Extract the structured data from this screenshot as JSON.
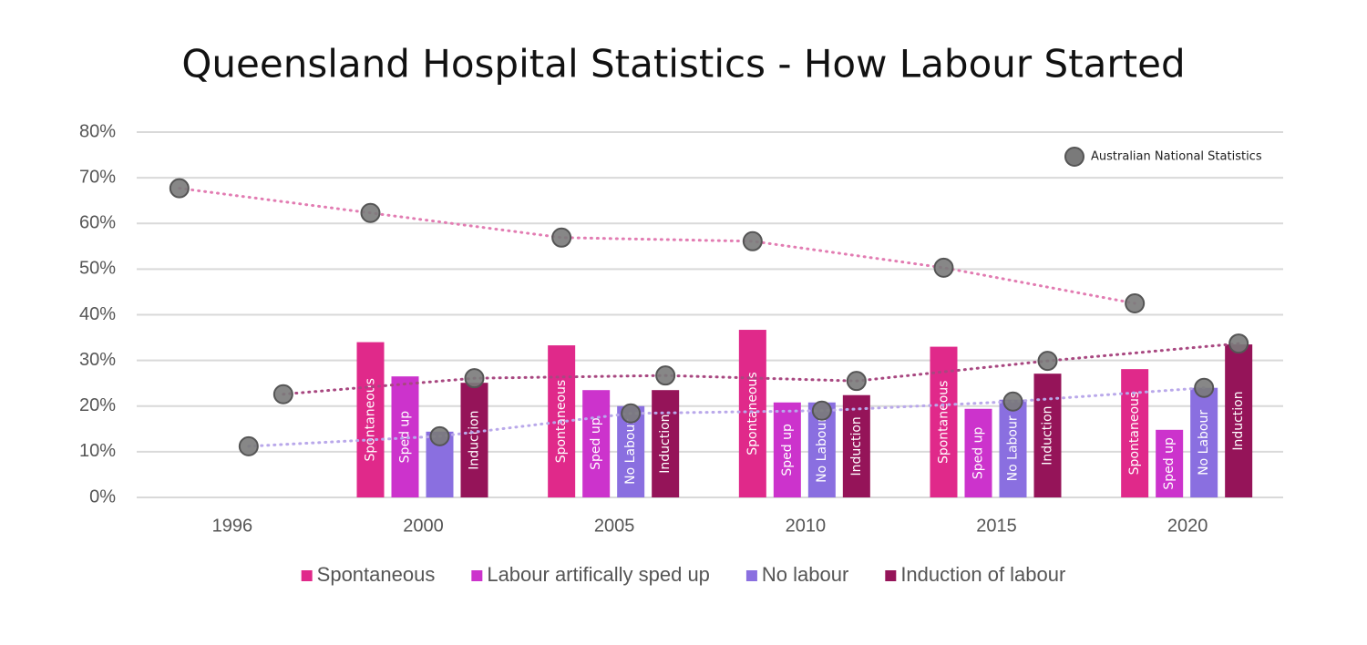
{
  "chart_data": {
    "type": "bar",
    "title": "Queensland Hospital Statistics  - How Labour Started",
    "categories": [
      "1996",
      "2000",
      "2005",
      "2010",
      "2015",
      "2020"
    ],
    "ylim": [
      0,
      80
    ],
    "yticks": [
      {
        "value": 0,
        "label": "0%"
      },
      {
        "value": 10,
        "label": "10%"
      },
      {
        "value": 20,
        "label": "20%"
      },
      {
        "value": 30,
        "label": "30%"
      },
      {
        "value": 40,
        "label": "40%"
      },
      {
        "value": 50,
        "label": "50%"
      },
      {
        "value": 60,
        "label": "60%"
      },
      {
        "value": 70,
        "label": "70%"
      },
      {
        "value": 80,
        "label": "80%"
      }
    ],
    "grid": true,
    "series": [
      {
        "name": "Spontaneous",
        "color": "#e0298a",
        "values": [
          null,
          34,
          33.3,
          36.7,
          33,
          28.1
        ],
        "bar_labels": [
          null,
          "Spontaneous",
          "Spontaneous",
          "Spontaneous",
          "Spontaneous",
          "Spontaneous"
        ],
        "national": [
          67.7,
          62.3,
          56.9,
          56.1,
          50.3,
          42.5
        ],
        "national_line_color": "#e27cb2"
      },
      {
        "name": "Labour artifically sped up",
        "color": "#cc33cc",
        "values": [
          null,
          26.5,
          23.5,
          20.8,
          19.4,
          14.8
        ],
        "bar_labels": [
          null,
          "Sped up",
          "Sped up",
          "Sped up",
          "Sped up",
          "Sped up"
        ]
      },
      {
        "name": "No labour",
        "color": "#8a6fe0",
        "values": [
          null,
          14.4,
          20,
          20.8,
          21.4,
          24
        ],
        "bar_labels": [
          null,
          null,
          "No Labour",
          "No Labour",
          "No Labour",
          "No Labour"
        ],
        "national": [
          11.2,
          13.4,
          18.4,
          19,
          21,
          24
        ],
        "national_line_color": "#b9a8ea"
      },
      {
        "name": "Induction of labour",
        "color": "#951459",
        "values": [
          null,
          25.1,
          23.5,
          22.4,
          27.1,
          33.5
        ],
        "bar_labels": [
          null,
          "Induction",
          "Induction",
          "Induction",
          "Induction",
          "Induction"
        ],
        "national": [
          22.6,
          26.1,
          26.7,
          25.5,
          29.9,
          33.7
        ],
        "national_line_color": "#a84780"
      }
    ],
    "national_label": "Australian National Statistics",
    "national_marker_color": "#7a7a7a"
  }
}
